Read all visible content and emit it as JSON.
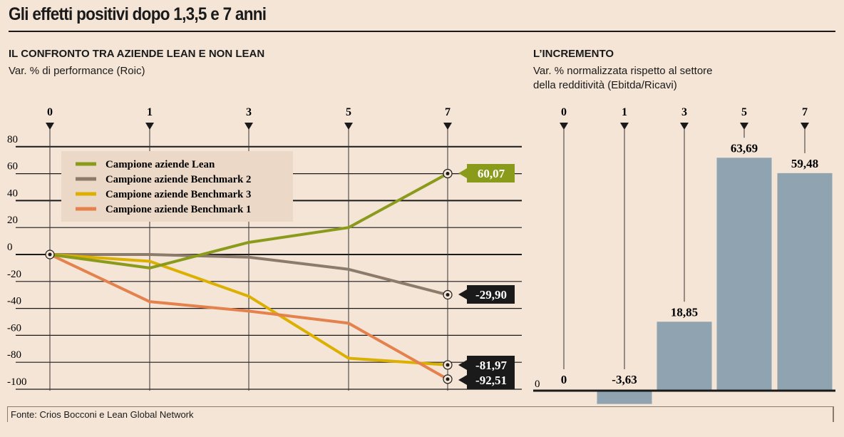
{
  "title": "Gli effetti positivi dopo 1,3,5 e 7 anni",
  "footer": "Fonte: Crios Bocconi e Lean Global Network",
  "chart_data": [
    {
      "type": "line",
      "heading": "IL CONFRONTO TRA AZIENDE LEAN E NON LEAN",
      "subtitle": "Var. % di performance (Roic)",
      "x": [
        "0",
        "1",
        "3",
        "5",
        "7"
      ],
      "yticks": [
        "80",
        "60",
        "40",
        "20",
        "0",
        "-20",
        "-40",
        "-60",
        "-80",
        "-100"
      ],
      "ylim": [
        -100,
        80
      ],
      "grid": true,
      "legend_position": "top-left",
      "series": [
        {
          "name": "Campione aziende Lean",
          "color": "#8a9a1a",
          "values": [
            0,
            -10,
            9,
            20,
            60.07
          ],
          "end_label": "60,07"
        },
        {
          "name": "Campione aziende Benchmark 2",
          "color": "#8c7b6b",
          "values": [
            0,
            0,
            -2,
            -11,
            -29.9
          ],
          "end_label": "-29,90"
        },
        {
          "name": "Campione aziende Benchmark 3",
          "color": "#dcb000",
          "values": [
            0,
            -5,
            -31,
            -77,
            -81.97
          ],
          "end_label": "-81,97"
        },
        {
          "name": "Campione aziende Benchmark 1",
          "color": "#e4814c",
          "values": [
            0,
            -35,
            -42,
            -51,
            -92.51
          ],
          "end_label": "-92,51"
        }
      ]
    },
    {
      "type": "bar",
      "heading": "L’INCREMENTO",
      "subtitle": [
        "Var. % normalizzata rispetto al settore",
        "della redditività (Ebitda/Ricavi)"
      ],
      "categories": [
        "0",
        "1",
        "3",
        "5",
        "7"
      ],
      "values": [
        0,
        -3.63,
        18.85,
        63.69,
        59.48
      ],
      "labels": [
        "0",
        "-3,63",
        "18,85",
        "63,69",
        "59,48"
      ],
      "baseline_label": "0",
      "color": "#8fa4b0"
    }
  ]
}
